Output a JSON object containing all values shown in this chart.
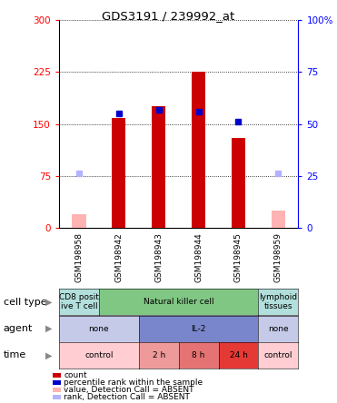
{
  "title": "GDS3191 / 239992_at",
  "samples": [
    "GSM198958",
    "GSM198942",
    "GSM198943",
    "GSM198944",
    "GSM198945",
    "GSM198959"
  ],
  "count_values": [
    20,
    158,
    175,
    225,
    130,
    25
  ],
  "count_absent": [
    true,
    false,
    false,
    false,
    false,
    true
  ],
  "rank_values": [
    26,
    55,
    57,
    56,
    51,
    26
  ],
  "rank_absent": [
    true,
    false,
    false,
    false,
    false,
    true
  ],
  "ylim_left": [
    0,
    300
  ],
  "ylim_right": [
    0,
    100
  ],
  "yticks_left": [
    0,
    75,
    150,
    225,
    300
  ],
  "yticks_right": [
    0,
    25,
    50,
    75,
    100
  ],
  "cell_type": {
    "spans": [
      {
        "cols": [
          0,
          0
        ],
        "label": "CD8 posit\nive T cell",
        "color": "#b2dfdb"
      },
      {
        "cols": [
          1,
          4
        ],
        "label": "Natural killer cell",
        "color": "#81c784"
      },
      {
        "cols": [
          5,
          5
        ],
        "label": "lymphoid\ntissues",
        "color": "#b2dfdb"
      }
    ]
  },
  "agent": {
    "spans": [
      {
        "cols": [
          0,
          1
        ],
        "label": "none",
        "color": "#c5cae9"
      },
      {
        "cols": [
          2,
          4
        ],
        "label": "IL-2",
        "color": "#7986cb"
      },
      {
        "cols": [
          5,
          5
        ],
        "label": "none",
        "color": "#c5cae9"
      }
    ]
  },
  "time": {
    "spans": [
      {
        "cols": [
          0,
          1
        ],
        "label": "control",
        "color": "#ffcdd2"
      },
      {
        "cols": [
          2,
          2
        ],
        "label": "2 h",
        "color": "#ef9a9a"
      },
      {
        "cols": [
          3,
          3
        ],
        "label": "8 h",
        "color": "#e57373"
      },
      {
        "cols": [
          4,
          4
        ],
        "label": "24 h",
        "color": "#e53935"
      },
      {
        "cols": [
          5,
          5
        ],
        "label": "control",
        "color": "#ffcdd2"
      }
    ]
  },
  "bar_color_present": "#cc0000",
  "bar_color_absent": "#ffb3b3",
  "rank_color_present": "#0000cc",
  "rank_color_absent": "#b3b3ff",
  "bar_width": 0.35,
  "rank_marker": "s",
  "rank_markersize": 5,
  "legend_items": [
    {
      "label": "count",
      "color": "#cc0000"
    },
    {
      "label": "percentile rank within the sample",
      "color": "#0000cc"
    },
    {
      "label": "value, Detection Call = ABSENT",
      "color": "#ffb3b3"
    },
    {
      "label": "rank, Detection Call = ABSENT",
      "color": "#b3b3ff"
    }
  ],
  "row_labels": [
    "cell type",
    "agent",
    "time"
  ],
  "sample_area_color": "#c8c8c8",
  "figsize": [
    3.71,
    4.44
  ],
  "dpi": 100
}
